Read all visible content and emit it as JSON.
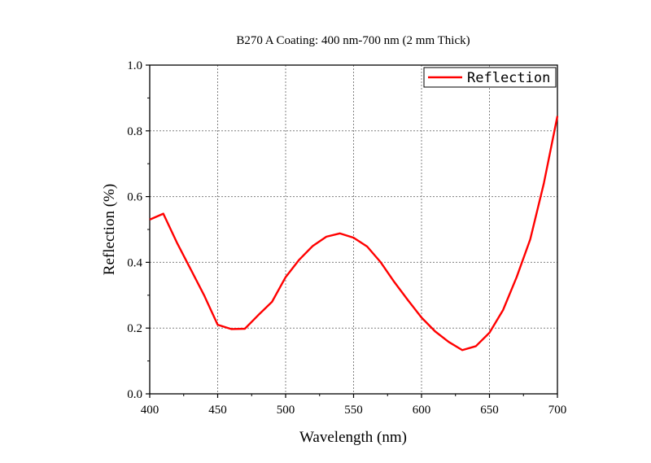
{
  "chart_data": {
    "type": "line",
    "title": "B270 A Coating: 400 nm-700 nm (2 mm Thick)",
    "xlabel": "Wavelength (nm)",
    "ylabel": "Reflection (%)",
    "xlim": [
      400,
      700
    ],
    "ylim": [
      0.0,
      1.0
    ],
    "x_ticks": [
      400,
      450,
      500,
      550,
      600,
      650,
      700
    ],
    "x_tick_labels": [
      "400",
      "450",
      "500",
      "550",
      "600",
      "650",
      "700"
    ],
    "y_ticks": [
      0.0,
      0.2,
      0.4,
      0.6,
      0.8,
      1.0
    ],
    "y_tick_labels": [
      "0.0",
      "0.2",
      "0.4",
      "0.6",
      "0.8",
      "1.0"
    ],
    "grid": true,
    "legend_position": "top-right",
    "series": [
      {
        "name": "Reflection",
        "color": "#ff0000",
        "x": [
          400,
          410,
          420,
          430,
          440,
          450,
          460,
          470,
          480,
          490,
          500,
          510,
          520,
          530,
          540,
          550,
          560,
          570,
          580,
          590,
          600,
          610,
          620,
          630,
          640,
          650,
          660,
          670,
          680,
          690,
          700
        ],
        "y": [
          0.53,
          0.548,
          0.46,
          0.38,
          0.3,
          0.21,
          0.197,
          0.198,
          0.24,
          0.28,
          0.355,
          0.408,
          0.45,
          0.478,
          0.488,
          0.475,
          0.448,
          0.4,
          0.34,
          0.285,
          0.232,
          0.19,
          0.158,
          0.133,
          0.145,
          0.186,
          0.255,
          0.355,
          0.47,
          0.64,
          0.845
        ]
      }
    ]
  }
}
